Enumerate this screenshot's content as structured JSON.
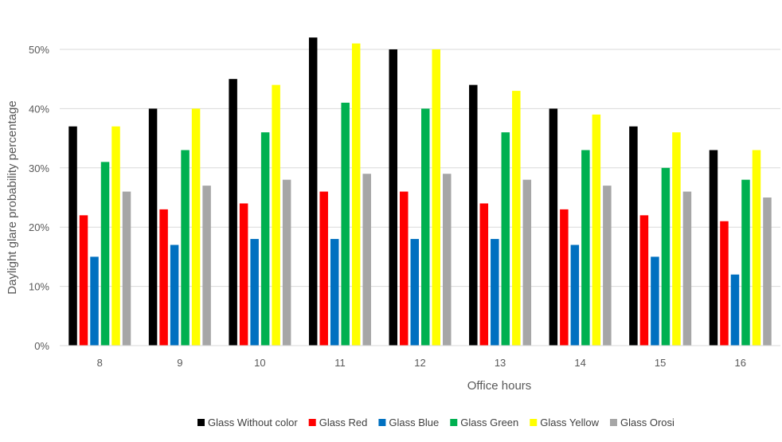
{
  "chart_data": {
    "type": "bar",
    "title": "",
    "xlabel": "Office hours",
    "ylabel": "Daylight glare probability percentage",
    "categories": [
      "8",
      "9",
      "10",
      "11",
      "12",
      "13",
      "14",
      "15",
      "16"
    ],
    "ylim": [
      0,
      50
    ],
    "yticks": [
      {
        "value": 0,
        "label": "0%"
      },
      {
        "value": 10,
        "label": "10%"
      },
      {
        "value": 20,
        "label": "20%"
      },
      {
        "value": 30,
        "label": "30%"
      },
      {
        "value": 40,
        "label": "40%"
      },
      {
        "value": 50,
        "label": "50%"
      }
    ],
    "grid": true,
    "legend_position": "bottom",
    "series": [
      {
        "name": "Glass Without color",
        "color": "#000000",
        "values": [
          37,
          40,
          45,
          52,
          50,
          44,
          40,
          37,
          33
        ]
      },
      {
        "name": "Glass Red",
        "color": "#ff0000",
        "values": [
          22,
          23,
          24,
          26,
          26,
          24,
          23,
          22,
          21
        ]
      },
      {
        "name": "Glass Blue",
        "color": "#0070c0",
        "values": [
          15,
          17,
          18,
          18,
          18,
          18,
          17,
          15,
          12
        ]
      },
      {
        "name": "Glass Green",
        "color": "#00b050",
        "values": [
          31,
          33,
          36,
          41,
          40,
          36,
          33,
          30,
          28
        ]
      },
      {
        "name": "Glass Yellow",
        "color": "#ffff00",
        "values": [
          37,
          40,
          44,
          51,
          50,
          43,
          39,
          36,
          33
        ]
      },
      {
        "name": "Glass Orosi",
        "color": "#a6a6a6",
        "values": [
          26,
          27,
          28,
          29,
          29,
          28,
          27,
          26,
          25
        ]
      }
    ]
  }
}
